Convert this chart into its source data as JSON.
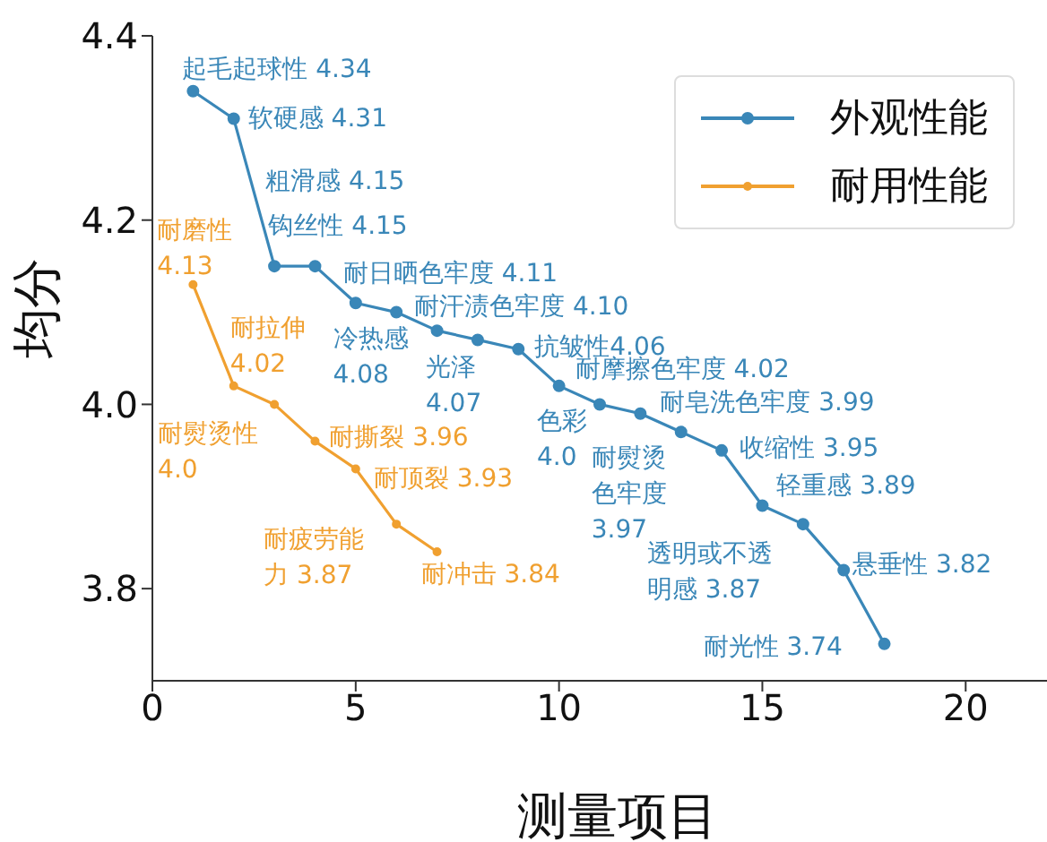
{
  "chart_data": {
    "type": "line",
    "xlabel": "测量项目",
    "ylabel": "均分",
    "xlim": [
      0,
      22
    ],
    "xticks": [
      0,
      5,
      10,
      15,
      20
    ],
    "ylim": [
      3.7,
      4.4
    ],
    "yticks": [
      3.8,
      {
        "value": 4.0,
        "label": "4.0"
      },
      4.2,
      4.4
    ],
    "grid": false,
    "legend": "top right",
    "marker": "circle",
    "line_style": "solid",
    "series": [
      {
        "name": "外观性能",
        "color": "#3a87b8",
        "x": [
          1,
          2,
          3,
          4,
          5,
          6,
          7,
          8,
          9,
          10,
          11,
          12,
          13,
          14,
          15,
          16,
          17,
          18
        ],
        "values": [
          4.34,
          4.31,
          4.15,
          4.15,
          4.11,
          4.1,
          4.08,
          4.07,
          4.06,
          4.02,
          4.0,
          3.99,
          3.97,
          3.95,
          3.89,
          3.87,
          3.82,
          3.74
        ]
      },
      {
        "name": "耐用性能",
        "color": "#f0a030",
        "x": [
          1,
          2,
          3,
          4,
          5,
          6,
          7
        ],
        "values": [
          4.13,
          4.02,
          4.0,
          3.96,
          3.93,
          3.87,
          3.84
        ]
      }
    ],
    "annotations": [
      {
        "text": "起毛起球性 4.34",
        "x": 1,
        "y": 4.34
      },
      {
        "text": "软硬感 4.31",
        "x": 2,
        "y": 4.31
      },
      {
        "text": "粗滑感 4.15",
        "x": 3,
        "y": 4.15
      },
      {
        "text": "钩丝性 4.15",
        "x": 4,
        "y": 4.15
      },
      {
        "text": "耐日晒色牢度 4.11",
        "x": 5,
        "y": 4.11
      },
      {
        "text": "耐汗渍色牢度 4.10",
        "x": 6,
        "y": 4.1
      },
      {
        "text": "冷热感 4.08",
        "x": 7,
        "y": 4.08
      },
      {
        "text": "光泽 4.07",
        "x": 8,
        "y": 4.07
      },
      {
        "text": "抗皱性4.06",
        "x": 9,
        "y": 4.06
      },
      {
        "text": "耐摩擦色牢度 4.02",
        "x": 10,
        "y": 4.02
      },
      {
        "text": "色彩 4.0",
        "x": 11,
        "y": 4.0
      },
      {
        "text": "耐皂洗色牢度 3.99",
        "x": 12,
        "y": 3.99
      },
      {
        "text": "耐熨烫色牢度 3.97",
        "x": 13,
        "y": 3.97
      },
      {
        "text": "收缩性 3.95",
        "x": 14,
        "y": 3.95
      },
      {
        "text": "轻重感 3.89",
        "x": 15,
        "y": 3.89
      },
      {
        "text": "透明或不透明感 3.87",
        "x": 16,
        "y": 3.87
      },
      {
        "text": "悬垂性 3.82",
        "x": 17,
        "y": 3.82
      },
      {
        "text": "耐光性 3.74",
        "x": 18,
        "y": 3.74
      },
      {
        "text": "耐磨性 4.13",
        "x": 1,
        "y": 4.13
      },
      {
        "text": "耐拉伸 4.02",
        "x": 2,
        "y": 4.02
      },
      {
        "text": "耐熨烫性 4.0",
        "x": 3,
        "y": 4.0
      },
      {
        "text": "耐撕裂 3.96",
        "x": 4,
        "y": 3.96
      },
      {
        "text": "耐顶裂 3.93",
        "x": 5,
        "y": 3.93
      },
      {
        "text": "耐疲劳能力 3.87",
        "x": 6,
        "y": 3.87
      },
      {
        "text": "耐冲击 3.84",
        "x": 7,
        "y": 3.84
      }
    ]
  }
}
